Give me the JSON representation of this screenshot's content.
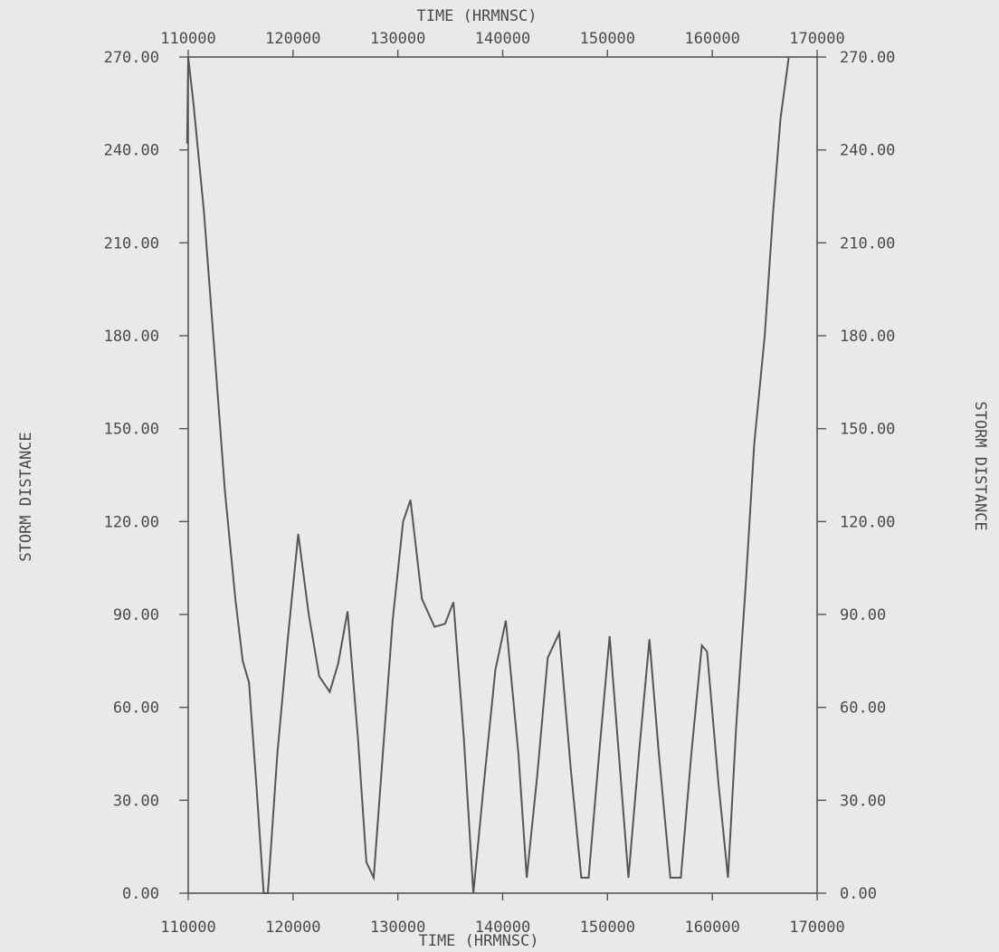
{
  "chart_data": {
    "type": "line",
    "title": "",
    "xlabel_top": "TIME (HRMNSC)",
    "xlabel_bottom": "TIME (HRMNSC)",
    "ylabel_left": "STORM DISTANCE",
    "ylabel_right": "STORM DISTANCE",
    "xlim": [
      110000,
      170000
    ],
    "ylim": [
      0,
      270
    ],
    "x_ticks": [
      110000,
      120000,
      130000,
      140000,
      150000,
      160000,
      170000
    ],
    "y_ticks": [
      0,
      30,
      60,
      90,
      120,
      150,
      180,
      210,
      240,
      270
    ],
    "x_tick_labels": [
      "110000",
      "120000",
      "130000",
      "140000",
      "150000",
      "160000",
      "170000"
    ],
    "y_tick_labels": [
      "0.00",
      "30.00",
      "60.00",
      "90.00",
      "120.00",
      "150.00",
      "180.00",
      "210.00",
      "240.00",
      "270.00"
    ],
    "grid": false,
    "series": [
      {
        "color": "#555555",
        "x": [
          109900,
          110000,
          110500,
          111500,
          112500,
          113500,
          114500,
          115200,
          115800,
          116500,
          117200,
          117600,
          118500,
          119500,
          120500,
          121500,
          122500,
          123500,
          124300,
          125200,
          126200,
          127000,
          127700,
          128500,
          129500,
          130500,
          131200,
          132300,
          133500,
          134500,
          135300,
          136300,
          137200,
          138200,
          139300,
          140300,
          141500,
          142300,
          143300,
          144300,
          145400,
          146500,
          147500,
          148200,
          149200,
          150200,
          151200,
          152000,
          153000,
          154000,
          154900,
          156000,
          157000,
          158000,
          159000,
          159500,
          160600,
          161500,
          162300,
          163200,
          164000,
          165000,
          165800,
          166500,
          167300
        ],
        "y": [
          242,
          270,
          255,
          220,
          175,
          130,
          95,
          75,
          68,
          35,
          0,
          0,
          45,
          82,
          116,
          90,
          70,
          65,
          74,
          91,
          50,
          10,
          5,
          42,
          88,
          120,
          127,
          95,
          86,
          87,
          94,
          50,
          0,
          35,
          72,
          88,
          45,
          5,
          38,
          76,
          84,
          40,
          5,
          5,
          45,
          83,
          40,
          5,
          45,
          82,
          45,
          5,
          5,
          45,
          80,
          78,
          35,
          5,
          55,
          100,
          145,
          180,
          220,
          250,
          270
        ]
      }
    ]
  }
}
